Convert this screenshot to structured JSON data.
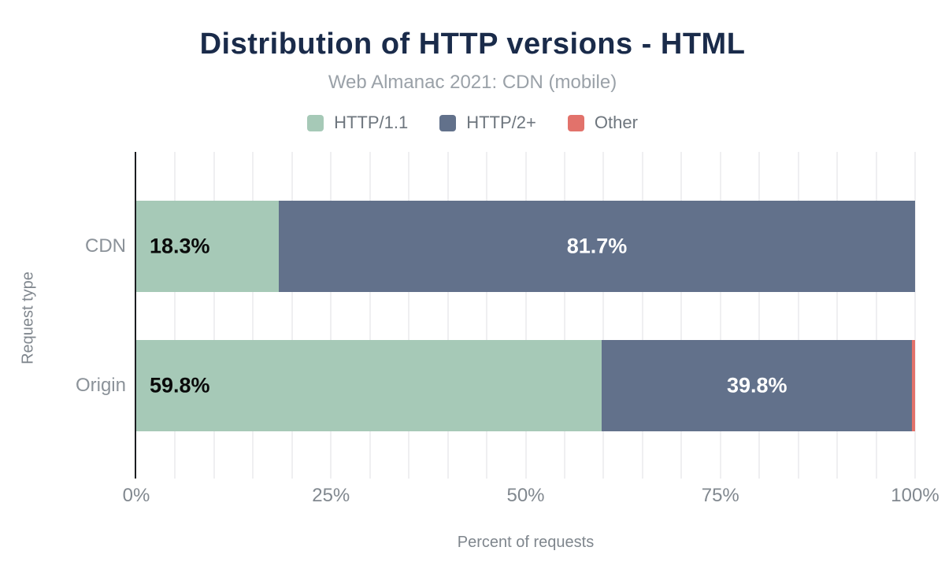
{
  "header": {
    "title": "Distribution of HTTP versions - HTML",
    "subtitle": "Web Almanac 2021: CDN (mobile)"
  },
  "legend": {
    "items": [
      {
        "label": "HTTP/1.1",
        "color": "#a6c9b7"
      },
      {
        "label": "HTTP/2+",
        "color": "#62718b"
      },
      {
        "label": "Other",
        "color": "#e2726b"
      }
    ]
  },
  "chart_data": {
    "type": "bar",
    "orientation": "horizontal",
    "stacked": true,
    "title": "Distribution of HTTP versions - HTML",
    "subtitle": "Web Almanac 2021: CDN (mobile)",
    "categories": [
      "CDN",
      "Origin"
    ],
    "series": [
      {
        "name": "HTTP/1.1",
        "color": "#a6c9b7",
        "values": [
          18.3,
          59.8
        ],
        "label_color": "#0a0a0a",
        "label_position": "inside-start"
      },
      {
        "name": "HTTP/2+",
        "color": "#62718b",
        "values": [
          81.7,
          39.8
        ],
        "label_color": "#ffffff",
        "label_position": "inside-center"
      },
      {
        "name": "Other",
        "color": "#e2726b",
        "values": [
          0.0,
          0.4
        ],
        "label_color": "#ffffff",
        "label_position": "none"
      }
    ],
    "xlabel": "Percent of requests",
    "ylabel": "Request type",
    "xlim": [
      0,
      100
    ],
    "x_tick_values": [
      0,
      25,
      50,
      75,
      100
    ],
    "x_ticks": [
      "0%",
      "25%",
      "50%",
      "75%",
      "100%"
    ],
    "grid": true,
    "grid_step": 5,
    "legend_position": "top",
    "value_suffix": "%",
    "min_label_value": 5
  },
  "colors": {
    "background": "#ffffff",
    "title": "#1a2b4a",
    "subtitle": "#9aa1a8",
    "legend_text": "#6e767e",
    "axis_text": "#81888f",
    "category_text": "#8b9299",
    "axis_title_text": "#7f868d",
    "axis_line": "#1b1d21",
    "gridline": "#efeff1"
  }
}
